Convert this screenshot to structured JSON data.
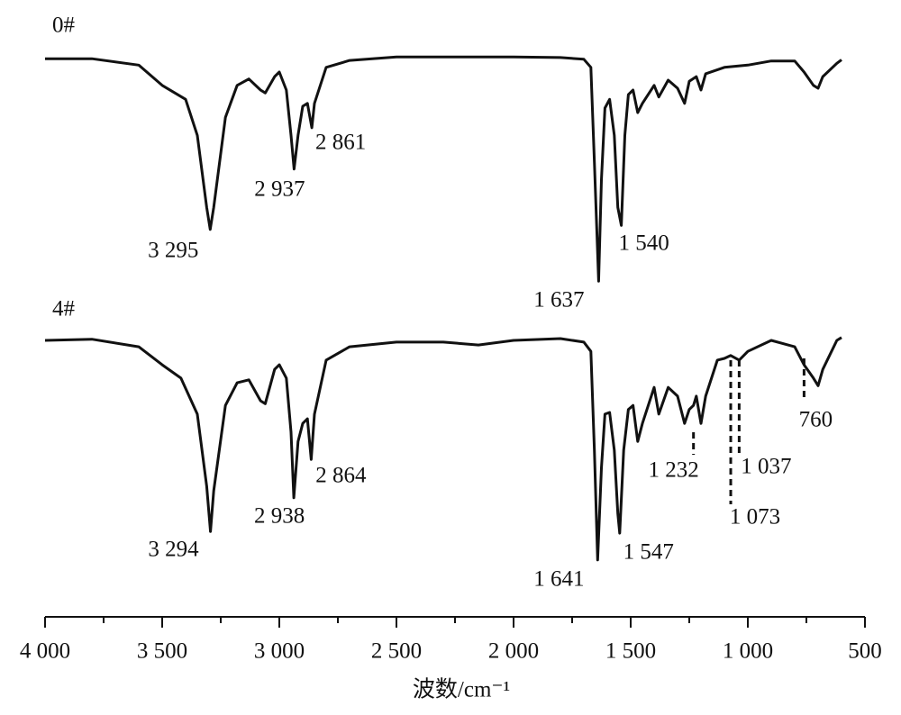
{
  "chart_data": {
    "type": "line",
    "x_label": "波数/cm⁻¹",
    "xlim": [
      4000,
      500
    ],
    "ylim": [
      0,
      100
    ],
    "xticks": [
      {
        "value": 4000,
        "label": "4 000"
      },
      {
        "value": 3500,
        "label": "3 500"
      },
      {
        "value": 3000,
        "label": "3 000"
      },
      {
        "value": 2500,
        "label": "2 500"
      },
      {
        "value": 2000,
        "label": "2 000"
      },
      {
        "value": 1500,
        "label": "1 500"
      },
      {
        "value": 1000,
        "label": "1 000"
      },
      500
    ],
    "minor_xticks": [
      3750,
      3250,
      2750,
      2250,
      1750,
      1250,
      750
    ],
    "grid": false,
    "color": "#111111",
    "series": [
      {
        "name": "0#",
        "x": [
          4000,
          3800,
          3600,
          3500,
          3400,
          3350,
          3310,
          3295,
          3280,
          3230,
          3180,
          3130,
          3080,
          3060,
          3020,
          3000,
          2970,
          2950,
          2937,
          2920,
          2900,
          2880,
          2861,
          2850,
          2800,
          2700,
          2500,
          2000,
          1800,
          1700,
          1670,
          1655,
          1637,
          1625,
          1610,
          1590,
          1570,
          1555,
          1540,
          1525,
          1510,
          1490,
          1470,
          1450,
          1400,
          1380,
          1340,
          1300,
          1270,
          1250,
          1220,
          1200,
          1180,
          1100,
          1000,
          900,
          800,
          760,
          720,
          700,
          680,
          620,
          600
        ],
        "values": [
          96.1,
          96.1,
          95.0,
          91.5,
          89.1,
          82.9,
          70.5,
          66.7,
          70.5,
          86.0,
          91.5,
          92.6,
          90.7,
          90.2,
          93.0,
          93.8,
          90.7,
          82.9,
          77.1,
          82.9,
          87.9,
          88.4,
          84.2,
          88.4,
          94.6,
          95.8,
          96.4,
          96.4,
          96.3,
          96.0,
          94.6,
          78.3,
          57.8,
          75.2,
          87.6,
          89.1,
          82.9,
          70.5,
          67.4,
          82.9,
          89.9,
          90.7,
          86.8,
          88.4,
          91.5,
          89.5,
          92.4,
          91.0,
          88.4,
          92.2,
          93.0,
          90.7,
          93.5,
          94.6,
          95.0,
          95.7,
          95.7,
          93.8,
          91.5,
          91.0,
          93.0,
          95.3,
          95.9
        ],
        "peaks": [
          {
            "x": 3295,
            "label": "3 295"
          },
          {
            "x": 2937,
            "label": "2 937"
          },
          {
            "x": 2861,
            "label": "2 861"
          },
          {
            "x": 1637,
            "label": "1 637"
          },
          {
            "x": 1540,
            "label": "1 540"
          }
        ]
      },
      {
        "name": "4#",
        "x": [
          4000,
          3800,
          3600,
          3500,
          3420,
          3350,
          3310,
          3294,
          3280,
          3230,
          3180,
          3130,
          3080,
          3060,
          3020,
          3000,
          2970,
          2950,
          2938,
          2920,
          2900,
          2880,
          2864,
          2850,
          2800,
          2700,
          2500,
          2300,
          2150,
          2000,
          1800,
          1700,
          1670,
          1655,
          1641,
          1625,
          1610,
          1590,
          1570,
          1555,
          1547,
          1530,
          1510,
          1490,
          1470,
          1450,
          1400,
          1380,
          1340,
          1300,
          1270,
          1250,
          1232,
          1220,
          1200,
          1180,
          1130,
          1100,
          1073,
          1037,
          1000,
          900,
          800,
          760,
          720,
          700,
          680,
          620,
          600
        ],
        "values": [
          47.6,
          47.8,
          46.5,
          43.4,
          41.1,
          34.9,
          22.5,
          14.7,
          21.7,
          36.4,
          40.3,
          40.8,
          37.2,
          36.7,
          42.6,
          43.4,
          41.1,
          31.8,
          20.5,
          30.2,
          33.3,
          34.1,
          27.1,
          34.9,
          44.2,
          46.5,
          47.3,
          47.3,
          46.8,
          47.6,
          47.9,
          47.3,
          45.7,
          28.7,
          9.8,
          25.6,
          34.9,
          35.2,
          28.7,
          17.8,
          14.4,
          28.7,
          35.7,
          36.4,
          30.2,
          33.3,
          39.5,
          34.9,
          39.5,
          38.0,
          33.3,
          35.7,
          36.4,
          38.0,
          33.3,
          38.0,
          44.2,
          44.5,
          45.0,
          44.2,
          45.7,
          47.6,
          46.5,
          43.4,
          41.1,
          39.8,
          42.6,
          47.6,
          48.1
        ],
        "peaks": [
          {
            "x": 3294,
            "label": "3 294"
          },
          {
            "x": 2938,
            "label": "2 938"
          },
          {
            "x": 2864,
            "label": "2 864"
          },
          {
            "x": 1641,
            "label": "1 641"
          },
          {
            "x": 1547,
            "label": "1 547"
          },
          {
            "x": 1232,
            "label": "1 232"
          },
          {
            "x": 1073,
            "label": "1 073"
          },
          {
            "x": 1037,
            "label": "1 037"
          },
          {
            "x": 760,
            "label": "760"
          }
        ]
      }
    ]
  }
}
